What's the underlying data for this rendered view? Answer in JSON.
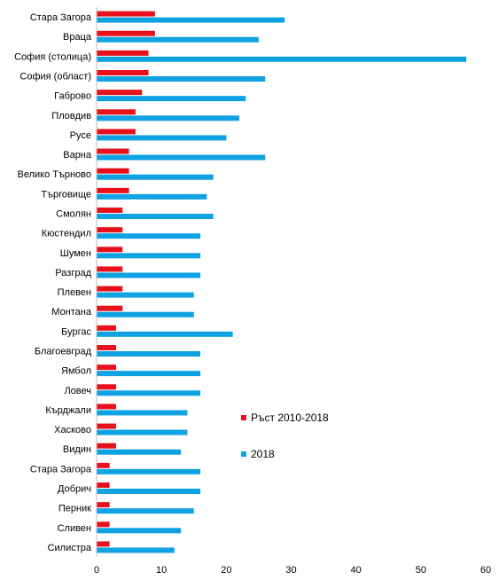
{
  "chart_data": {
    "type": "bar",
    "orientation": "horizontal",
    "title": "",
    "xlabel": "",
    "ylabel": "",
    "xlim": [
      0,
      60
    ],
    "xticks": [
      0,
      10,
      20,
      30,
      40,
      50,
      60
    ],
    "grid": false,
    "legend_position": "right",
    "categories": [
      "Стара Загора",
      "Враца",
      "София (столица)",
      "София (област)",
      "Габрово",
      "Пловдив",
      "Русе",
      "Варна",
      "Велико Търново",
      "Търговище",
      "Смолян",
      "Кюстендил",
      "Шумен",
      "Разград",
      "Плевен",
      "Монтана",
      "Бургас",
      "Благоевград",
      "Ямбол",
      "Ловеч",
      "Кърджали",
      "Хасково",
      "Видин",
      "Стара Загора",
      "Добрич",
      "Перник",
      "Сливен",
      "Силистра"
    ],
    "series": [
      {
        "name": "Ръст 2010-2018",
        "color": "#e8101a",
        "values": [
          9,
          9,
          8,
          8,
          7,
          6,
          6,
          5,
          5,
          5,
          4,
          4,
          4,
          4,
          4,
          4,
          3,
          3,
          3,
          3,
          3,
          3,
          3,
          2,
          2,
          2,
          2,
          2
        ]
      },
      {
        "name": "2018",
        "color": "#0da3e2",
        "values": [
          29,
          25,
          57,
          26,
          23,
          22,
          20,
          26,
          18,
          17,
          18,
          16,
          16,
          16,
          15,
          15,
          21,
          16,
          16,
          16,
          14,
          14,
          13,
          16,
          16,
          15,
          13,
          12
        ]
      }
    ]
  }
}
